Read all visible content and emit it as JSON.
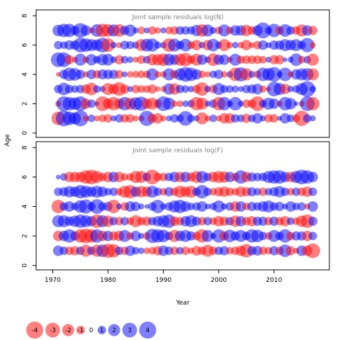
{
  "chart_data": [
    {
      "type": "scatter",
      "title": "Joint sample residuals log(N)",
      "ylabel": "Age",
      "xlim": [
        1967,
        2020
      ],
      "ylim": [
        -0.3,
        8.4
      ],
      "yticks": [
        0,
        2,
        4,
        6,
        8
      ],
      "ages": [
        1,
        2,
        3,
        4,
        5,
        6,
        7
      ],
      "years": [
        1971,
        1972,
        1973,
        1974,
        1975,
        1976,
        1977,
        1978,
        1979,
        1980,
        1981,
        1982,
        1983,
        1984,
        1985,
        1986,
        1987,
        1988,
        1989,
        1990,
        1991,
        1992,
        1993,
        1994,
        1995,
        1996,
        1997,
        1998,
        1999,
        2000,
        2001,
        2002,
        2003,
        2004,
        2005,
        2006,
        2007,
        2008,
        2009,
        2010,
        2011,
        2012,
        2013,
        2014,
        2015,
        2016,
        2017
      ],
      "residuals_by_age": [
        [
          -2.5,
          3.5,
          2.5,
          2.0,
          3.5,
          -0.5,
          0.8,
          -0.5,
          -0.8,
          -1.0,
          0.5,
          1.0,
          -1.0,
          -1.0,
          -0.5,
          -0.5,
          3.2,
          -1.2,
          -1.5,
          -0.5,
          0.5,
          1.0,
          0.8,
          3.0,
          0.8,
          0.5,
          -2.0,
          -0.5,
          0.8,
          -0.5,
          -1.5,
          -1.5,
          1.0,
          0.8,
          -1.2,
          0.8,
          1.5,
          0.5,
          -1.0,
          -1.0,
          0.3,
          1.5,
          0.8,
          -0.8,
          -3.2,
          1.0,
          0.5
        ],
        [
          -0.5,
          3.0,
          2.5,
          2.2,
          3.0,
          -1.5,
          1.0,
          0.3,
          -3.0,
          -1.5,
          -2.5,
          -1.5,
          2.5,
          -2.0,
          2.3,
          2.8,
          -1.5,
          -2.0,
          -1.0,
          3.0,
          2.0,
          -0.6,
          -0.6,
          0.6,
          0.8,
          -2.5,
          -2.0,
          0.5,
          1.0,
          -2.5,
          2.5,
          0.6,
          2.5,
          0.5,
          -1.0,
          -1.0,
          -3.0,
          0.8,
          2.0,
          1.5,
          -0.5,
          2.5,
          1.8,
          0.3,
          -0.5,
          3.0,
          -2.5
        ],
        [
          1.0,
          2.2,
          1.0,
          0.8,
          1.0,
          -1.2,
          -2.2,
          0.8,
          0.5,
          -2.0,
          -1.5,
          -2.6,
          -1.2,
          0.5,
          -1.0,
          -0.8,
          -0.8,
          -1.2,
          -0.4,
          -0.5,
          1.8,
          -1.8,
          1.0,
          0.8,
          0.6,
          -1.0,
          -2.5,
          0.6,
          -1.0,
          2.0,
          0.9,
          0.8,
          0.7,
          0.5,
          1.0,
          1.2,
          1.6,
          -0.7,
          -0.3,
          3.0,
          2.0,
          -1.5,
          0.6,
          0.8,
          2.0,
          3.5,
          0.6
        ],
        [
          -0.3,
          1.2,
          2.5,
          2.2,
          1.2,
          -0.5,
          1.3,
          -1.0,
          1.4,
          1.3,
          1.2,
          -1.0,
          0.5,
          -0.6,
          -0.7,
          -0.8,
          -0.8,
          2.0,
          -0.6,
          -0.6,
          2.0,
          -1.0,
          2.0,
          3.0,
          2.5,
          1.5,
          -0.8,
          -0.5,
          0.8,
          1.2,
          -0.6,
          0.6,
          -2.5,
          2.8,
          -2.0,
          0.7,
          -0.8,
          2.5,
          2.2,
          3.0,
          0.5,
          2.5,
          -0.5,
          1.5,
          2.0,
          2.2,
          -2.0
        ],
        [
          3.0,
          3.0,
          -1.2,
          -0.5,
          2.0,
          -0.6,
          1.8,
          0.8,
          1.8,
          1.9,
          0.6,
          -1.2,
          0.8,
          0.6,
          -0.5,
          -1.0,
          0.8,
          -1.8,
          -1.8,
          -2.2,
          2.0,
          1.5,
          -2.0,
          -2.5,
          -1.0,
          -2.0,
          1.5,
          0.6,
          -2.2,
          1.5,
          1.5,
          -0.5,
          2.0,
          -0.9,
          -1.0,
          -1.0,
          -1.0,
          -0.8,
          0.5,
          -1.2,
          -1.2,
          0.3,
          0.5,
          2.2,
          -0.8,
          0.8,
          -2.0
        ],
        [
          1.0,
          0.8,
          1.3,
          1.2,
          3.0,
          2.5,
          2.0,
          1.8,
          3.0,
          -2.5,
          0.6,
          -0.5,
          1.1,
          0.9,
          0.7,
          -2.0,
          2.3,
          2.4,
          0.7,
          0.6,
          -2.5,
          2.3,
          1.0,
          2.2,
          -0.8,
          -1.5,
          0.6,
          -1.5,
          2.2,
          0.7,
          -2.0,
          -0.6,
          0.6,
          -0.6,
          -1.5,
          -0.5,
          -1.0,
          1.3,
          0.5,
          1.2,
          1.2,
          2.0,
          1.5,
          2.0,
          1.0,
          2.8,
          -0.5
        ],
        [
          1.8,
          2.5,
          2.5,
          1.2,
          3.0,
          1.5,
          -0.5,
          2.2,
          -2.5,
          -2.2,
          2.0,
          -2.2,
          1.2,
          2.0,
          0.5,
          -0.8,
          0.5,
          -1.0,
          -0.6,
          0.5,
          -0.8,
          -1.0,
          1.0,
          1.0,
          0.9,
          1.8,
          -2.2,
          2.0,
          0.7,
          -0.8,
          2.0,
          -0.8,
          1.5,
          1.5,
          -1.8,
          -1.0,
          1.5,
          3.5,
          0.8,
          2.5,
          -1.0,
          2.2,
          1.0,
          -1.0,
          -2.0,
          1.5,
          -1.2
        ]
      ]
    },
    {
      "type": "scatter",
      "title": "Joint sample residuals log(F)",
      "xlabel": "Year",
      "ylabel": "",
      "xlim": [
        1967,
        2020
      ],
      "ylim": [
        -0.3,
        8.4
      ],
      "xticks": [
        1970,
        1980,
        1990,
        2000,
        2010
      ],
      "yticks": [
        0,
        2,
        4,
        6,
        8
      ],
      "ages": [
        1,
        2,
        3,
        4,
        5,
        6
      ],
      "years": [
        1971,
        1972,
        1973,
        1974,
        1975,
        1976,
        1977,
        1978,
        1979,
        1980,
        1981,
        1982,
        1983,
        1984,
        1985,
        1986,
        1987,
        1988,
        1989,
        1990,
        1991,
        1992,
        1993,
        1994,
        1995,
        1996,
        1997,
        1998,
        1999,
        2000,
        2001,
        2002,
        2003,
        2004,
        2005,
        2006,
        2007,
        2008,
        2009,
        2010,
        2011,
        2012,
        2013,
        2014,
        2015,
        2016,
        2017
      ],
      "residuals_by_age": [
        [
          1.5,
          1.0,
          -1.0,
          -1.2,
          1.0,
          -2.0,
          1.0,
          -2.0,
          2.2,
          -2.8,
          -2.5,
          1.0,
          -1.0,
          1.5,
          0.8,
          0.6,
          -0.6,
          -0.8,
          -1.2,
          1.5,
          1.0,
          -1.0,
          0.8,
          -1.0,
          -0.6,
          -1.3,
          -1.0,
          -2.0,
          -1.0,
          1.0,
          1.2,
          -0.8,
          -1.0,
          -1.5,
          -2.5,
          1.2,
          1.3,
          -1.0,
          -0.8,
          1.2,
          -1.0,
          2.2,
          -1.2,
          -0.5,
          1.5,
          -1.5,
          -3.0
        ],
        [
          -1.5,
          1.5,
          2.5,
          1.2,
          -2.5,
          -3.0,
          -2.5,
          2.5,
          -1.5,
          1.5,
          -1.2,
          -1.5,
          2.0,
          -0.8,
          1.5,
          0.5,
          -0.8,
          2.8,
          2.5,
          2.2,
          1.0,
          -2.0,
          1.5,
          2.0,
          1.2,
          -1.0,
          -2.5,
          2.0,
          0.5,
          2.5,
          -1.2,
          2.2,
          1.2,
          2.0,
          1.0,
          2.5,
          2.2,
          1.0,
          -0.8,
          2.0,
          1.0,
          2.5,
          -1.0,
          1.2,
          1.2,
          -1.5,
          1.0
        ],
        [
          2.0,
          2.0,
          1.3,
          1.8,
          2.5,
          2.0,
          1.5,
          -2.5,
          2.0,
          -1.8,
          1.0,
          -1.0,
          1.0,
          -0.8,
          -2.0,
          -1.0,
          -1.2,
          1.0,
          1.5,
          2.0,
          2.5,
          -1.3,
          -1.0,
          1.5,
          2.0,
          1.2,
          -1.0,
          1.0,
          -0.8,
          -1.5,
          -1.2,
          1.0,
          -1.8,
          1.5,
          -1.0,
          -1.5,
          1.2,
          1.2,
          -1.0,
          1.2,
          -1.0,
          -1.5,
          0.8,
          -0.8,
          -1.8,
          -2.5,
          1.2
        ],
        [
          -2.5,
          1.0,
          1.5,
          0.8,
          2.2,
          2.8,
          1.0,
          3.0,
          1.0,
          1.2,
          -2.5,
          0.5,
          -1.0,
          1.5,
          1.2,
          0.5,
          0.3,
          1.0,
          2.5,
          0.6,
          1.0,
          2.0,
          2.5,
          1.5,
          0.8,
          1.0,
          1.5,
          0.5,
          0.8,
          2.0,
          0.6,
          1.0,
          -1.5,
          1.5,
          -0.8,
          1.2,
          1.0,
          1.5,
          2.0,
          1.0,
          1.2,
          0.5,
          1.5,
          0.8,
          1.0,
          -0.5,
          1.5
        ],
        [
          1.0,
          1.2,
          1.8,
          1.5,
          2.5,
          2.0,
          1.5,
          2.0,
          1.5,
          0.8,
          1.0,
          -0.8,
          -2.0,
          -2.5,
          1.5,
          -1.8,
          -1.5,
          2.0,
          1.0,
          -0.8,
          1.2,
          -1.0,
          -2.0,
          -1.5,
          -2.0,
          1.0,
          2.5,
          1.0,
          -0.8,
          -1.2,
          -1.5,
          -1.0,
          -0.8,
          -1.5,
          -1.2,
          1.2,
          0.8,
          -1.0,
          0.8,
          1.2,
          1.8,
          1.0,
          -0.8,
          1.0,
          -1.0,
          -1.5,
          1.0
        ],
        [
          0.3,
          0.8,
          -1.5,
          -1.5,
          -1.5,
          -2.5,
          -3.0,
          -2.0,
          -1.0,
          -1.5,
          1.5,
          -1.5,
          -0.8,
          -0.8,
          -2.0,
          -2.0,
          1.0,
          -3.0,
          -1.0,
          -1.0,
          1.0,
          1.5,
          -1.5,
          1.5,
          -1.2,
          -2.0,
          2.0,
          1.0,
          -1.5,
          -2.0,
          -1.8,
          1.5,
          -1.0,
          2.5,
          -1.5,
          1.2,
          1.0,
          1.0,
          2.0,
          2.5,
          2.5,
          1.5,
          -1.5,
          2.0,
          3.0,
          2.5,
          1.5
        ]
      ]
    }
  ],
  "legend": {
    "values": [
      "-4",
      "-3",
      "-2",
      "-1",
      "0",
      "1",
      "2",
      "3",
      "4"
    ]
  },
  "colors": {
    "positive": "#0000FF",
    "negative": "#FF0000"
  }
}
